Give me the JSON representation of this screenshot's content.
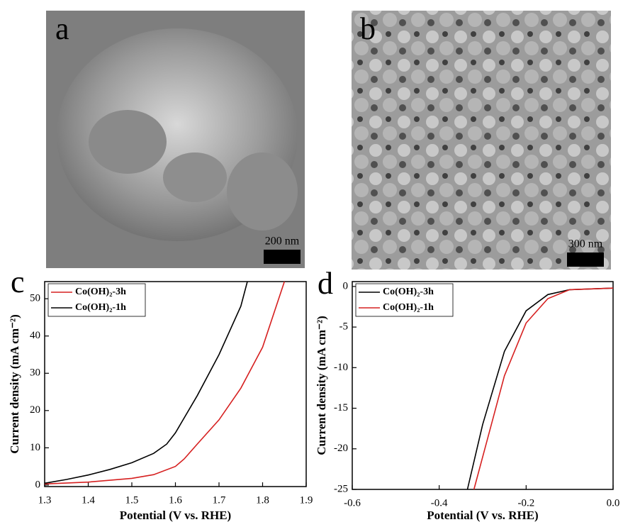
{
  "images": [
    {
      "label": "a",
      "scale_bar": "200 nm"
    },
    {
      "label": "b",
      "scale_bar": "300 nm"
    }
  ],
  "chart_data": [
    {
      "type": "line",
      "panel_label": "c",
      "xlabel": "Potential (V vs. RHE)",
      "ylabel": "Current density (mA cm⁻²)",
      "xlim": [
        1.3,
        1.9
      ],
      "xticks": [
        1.3,
        1.4,
        1.5,
        1.6,
        1.7,
        1.8,
        1.9
      ],
      "ylim": [
        -0.4,
        54.6
      ],
      "yticks": [
        0,
        10,
        20,
        30,
        40,
        50
      ],
      "legend": "upper-left",
      "series": [
        {
          "name": "Co(OH)₂-3h",
          "color": "#d62020",
          "x": [
            1.3,
            1.4,
            1.5,
            1.55,
            1.6,
            1.62,
            1.65,
            1.7,
            1.75,
            1.8,
            1.85
          ],
          "values": [
            0.3,
            0.8,
            1.8,
            2.8,
            5,
            7,
            11,
            17.5,
            26,
            37,
            54.6
          ]
        },
        {
          "name": "Co(OH)₂-1h",
          "color": "#000000",
          "x": [
            1.3,
            1.35,
            1.4,
            1.45,
            1.5,
            1.55,
            1.58,
            1.6,
            1.65,
            1.7,
            1.75,
            1.765
          ],
          "values": [
            0.5,
            1.5,
            2.7,
            4.2,
            6,
            8.5,
            11,
            14,
            24,
            35,
            48,
            54.6
          ]
        }
      ]
    },
    {
      "type": "line",
      "panel_label": "d",
      "xlabel": "Potential (V vs. RHE)",
      "ylabel": "Current density (mA cm⁻²)",
      "xlim": [
        -0.6,
        0
      ],
      "xticks": [
        -0.6,
        -0.4,
        -0.2,
        {
          "value": 0,
          "label": "0.0"
        }
      ],
      "ylim": [
        -25,
        0.6
      ],
      "yticks": [
        -25,
        -20,
        -15,
        -10,
        -5,
        0
      ],
      "legend": "upper-left",
      "series": [
        {
          "name": "Co(OH)₂-3h",
          "color": "#000000",
          "x": [
            -0.335,
            -0.3,
            -0.25,
            -0.2,
            -0.15,
            -0.1,
            0
          ],
          "values": [
            -25,
            -17,
            -8,
            -3,
            -1,
            -0.4,
            -0.2
          ]
        },
        {
          "name": "Co(OH)₂-1h",
          "color": "#d62020",
          "x": [
            -0.32,
            -0.28,
            -0.25,
            -0.2,
            -0.15,
            -0.1,
            0
          ],
          "values": [
            -25,
            -17,
            -11,
            -4.5,
            -1.5,
            -0.4,
            -0.2
          ]
        }
      ]
    }
  ]
}
